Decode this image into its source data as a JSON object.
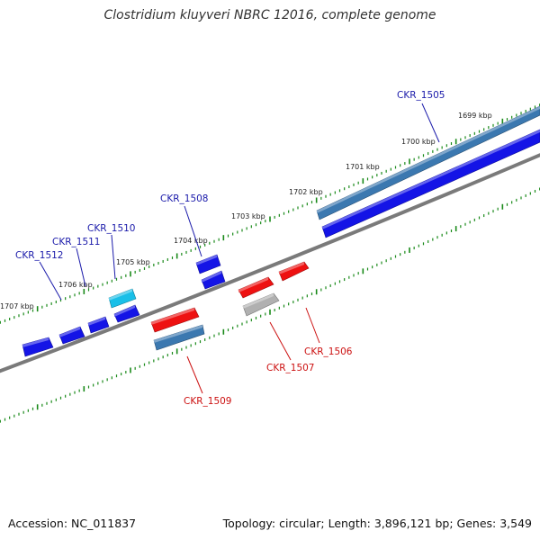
{
  "title": "Clostridium kluyveri NBRC 12016, complete genome",
  "footer": {
    "accession": "Accession: NC_011837",
    "summary": "Topology: circular; Length: 3,896,121 bp; Genes: 3,549"
  },
  "colors": {
    "backbone": "#7a7a7a",
    "tick": "#1a8a1a",
    "forward_label": "#1a1aaa",
    "reverse_label": "#cc1111",
    "cds_blue": "#1414e6",
    "rrna_steelblue": "#3b78b0",
    "trna_cyan": "#19bfe8",
    "cds_red": "#ee1111",
    "pseudo_gray": "#b0b0b0"
  },
  "scale": {
    "unit": "kbp",
    "labels": [
      "1699 kbp",
      "1700 kbp",
      "1701 kbp",
      "1702 kbp",
      "1703 kbp",
      "1704 kbp",
      "1705 kbp",
      "1706 kbp",
      "1707 kbp"
    ]
  },
  "genes": [
    {
      "id": "CKR_1505",
      "strand": "forward",
      "color": "rrna_steelblue",
      "labeled": true
    },
    {
      "id": "CKR_1505b",
      "strand": "forward",
      "color": "cds_blue",
      "labeled": false
    },
    {
      "id": "CKR_1506",
      "strand": "reverse",
      "color": "cds_red",
      "labeled": true
    },
    {
      "id": "CKR_1507",
      "strand": "reverse",
      "color": "cds_red",
      "labeled": true
    },
    {
      "id": "CKR_1507p",
      "strand": "reverse",
      "color": "pseudo_gray",
      "labeled": false
    },
    {
      "id": "CKR_1508",
      "strand": "forward",
      "color": "cds_blue",
      "labeled": true
    },
    {
      "id": "CKR_1509",
      "strand": "reverse",
      "color": "cds_red",
      "labeled": true
    },
    {
      "id": "CKR_1509b",
      "strand": "reverse",
      "color": "rrna_steelblue",
      "labeled": false
    },
    {
      "id": "CKR_1510",
      "strand": "forward",
      "color": "trna_cyan",
      "labeled": true
    },
    {
      "id": "CKR_1510b",
      "strand": "forward",
      "color": "cds_blue",
      "labeled": false
    },
    {
      "id": "CKR_1511",
      "strand": "forward",
      "color": "cds_blue",
      "labeled": true
    },
    {
      "id": "CKR_1512",
      "strand": "forward",
      "color": "cds_blue",
      "labeled": true
    },
    {
      "id": "CKR_1513",
      "strand": "forward",
      "color": "cds_blue",
      "labeled": false
    }
  ],
  "gene_labels": {
    "CKR_1505": "CKR_1505",
    "CKR_1506": "CKR_1506",
    "CKR_1507": "CKR_1507",
    "CKR_1508": "CKR_1508",
    "CKR_1509": "CKR_1509",
    "CKR_1510": "CKR_1510",
    "CKR_1511": "CKR_1511",
    "CKR_1512": "CKR_1512"
  }
}
